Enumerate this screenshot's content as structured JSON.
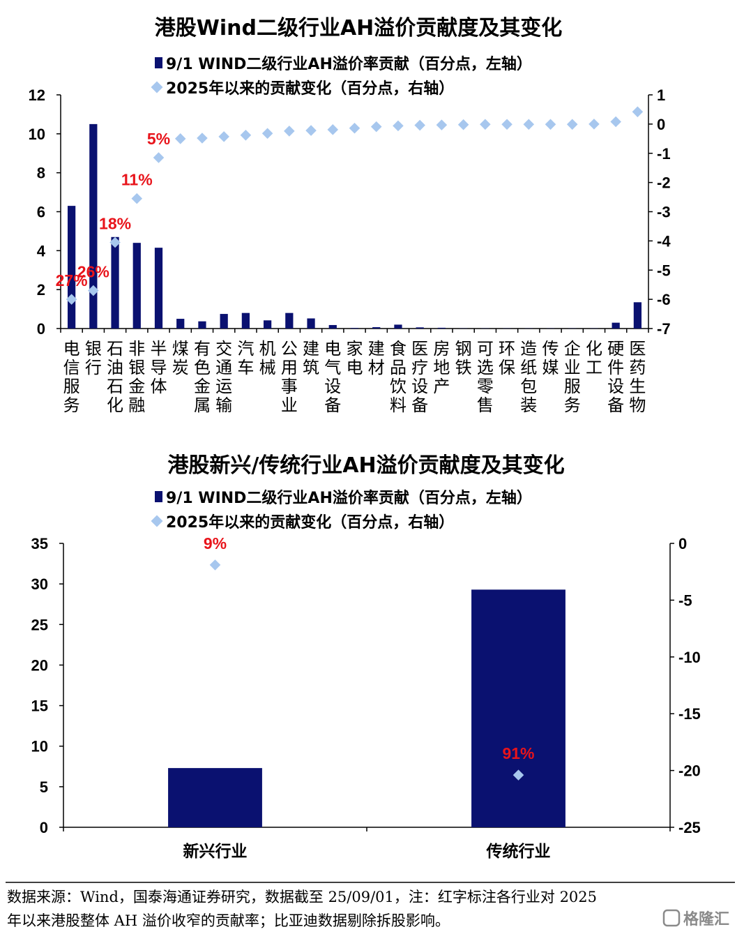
{
  "colors": {
    "bar": "#0a1170",
    "marker": "#a7c7ee",
    "annotation": "#e8141b"
  },
  "chart_data": [
    {
      "type": "bar",
      "title": "港股Wind二级行业AH溢价贡献度及其变化",
      "legend": {
        "placement": "top",
        "items": [
          "9/1 WIND二级行业AH溢价率贡献（百分点，左轴）",
          "2025年以来的贡献变化（百分点，右轴）"
        ]
      },
      "categories": [
        "电信服务",
        "银行",
        "石油石化",
        "非银金融",
        "半导体",
        "煤炭",
        "有色金属",
        "交通运输",
        "汽车",
        "机械",
        "公用事业",
        "建筑",
        "电气设备",
        "家电",
        "建材",
        "食品饮料",
        "医疗设备",
        "房地产",
        "钢铁",
        "可选零售",
        "环保",
        "造纸包装",
        "传媒",
        "企业服务",
        "化工",
        "硬件设备",
        "医药生物"
      ],
      "series": [
        {
          "name": "9/1 WIND二级行业AH溢价率贡献（百分点，左轴）",
          "axis": "left",
          "style": "bar",
          "values": [
            6.3,
            10.5,
            4.7,
            4.4,
            4.15,
            0.5,
            0.37,
            0.75,
            0.8,
            0.42,
            0.8,
            0.52,
            0.18,
            0.03,
            0.07,
            0.2,
            0.06,
            0.04,
            0.01,
            0.01,
            0.01,
            0.01,
            0.01,
            0.01,
            0.01,
            0.3,
            1.35
          ]
        },
        {
          "name": "2025年以来的贡献变化（百分点，右轴）",
          "axis": "right",
          "style": "marker",
          "values": [
            -6.0,
            -5.7,
            -4.05,
            -2.55,
            -1.15,
            -0.5,
            -0.48,
            -0.43,
            -0.38,
            -0.32,
            -0.24,
            -0.22,
            -0.19,
            -0.14,
            -0.09,
            -0.06,
            -0.04,
            -0.03,
            -0.02,
            -0.01,
            -0.01,
            -0.01,
            -0.01,
            -0.01,
            0.0,
            0.08,
            0.42
          ]
        }
      ],
      "annotations": [
        {
          "category": "电信服务",
          "text": "27%"
        },
        {
          "category": "银行",
          "text": "26%"
        },
        {
          "category": "石油石化",
          "text": "18%"
        },
        {
          "category": "非银金融",
          "text": "11%"
        },
        {
          "category": "半导体",
          "text": "5%"
        }
      ],
      "ylim_left": [
        0,
        12
      ],
      "yticks_left": [
        0,
        2,
        4,
        6,
        8,
        10,
        12
      ],
      "ylim_right": [
        -7,
        1
      ],
      "yticks_right": [
        -7,
        -6,
        -5,
        -4,
        -3,
        -2,
        -1,
        0,
        1
      ],
      "grid": false
    },
    {
      "type": "bar",
      "title": "港股新兴/传统行业AH溢价贡献度及其变化",
      "legend": {
        "placement": "top",
        "items": [
          "9/1 WIND二级行业AH溢价率贡献（百分点，左轴）",
          "2025年以来的贡献变化（百分点，右轴）"
        ]
      },
      "categories": [
        "新兴行业",
        "传统行业"
      ],
      "series": [
        {
          "name": "9/1 WIND二级行业AH溢价率贡献（百分点，左轴）",
          "axis": "left",
          "style": "bar",
          "values": [
            7.3,
            29.3
          ]
        },
        {
          "name": "2025年以来的贡献变化（百分点，右轴）",
          "axis": "right",
          "style": "marker",
          "values": [
            -1.9,
            -20.4
          ]
        }
      ],
      "annotations": [
        {
          "category": "新兴行业",
          "text": "9%"
        },
        {
          "category": "传统行业",
          "text": "91%"
        }
      ],
      "ylim_left": [
        0,
        35
      ],
      "yticks_left": [
        0,
        5,
        10,
        15,
        20,
        25,
        30,
        35
      ],
      "ylim_right": [
        -25,
        0
      ],
      "yticks_right": [
        -25,
        -20,
        -15,
        -10,
        -5,
        0
      ],
      "grid": false
    }
  ],
  "footer": {
    "line1": "数据来源：Wind，国泰海通证券研究，数据截至 25/09/01，注：红字标注各行业对 2025",
    "line2": "年以来港股整体 AH 溢价收窄的贡献率；比亚迪数据剔除拆股影响。"
  },
  "watermark": "格隆汇"
}
